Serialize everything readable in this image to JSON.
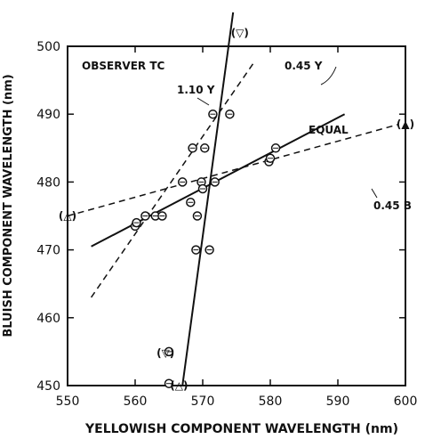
{
  "chart_data": {
    "type": "scatter",
    "xlabel": "YELLOWISH COMPONENT WAVELENGTH (nm)",
    "ylabel": "BLUISH COMPONENT WAVELENGTH (nm)",
    "xlim": [
      550,
      600
    ],
    "ylim": [
      450,
      500
    ],
    "x_ticks": [
      550,
      560,
      570,
      580,
      590,
      600
    ],
    "y_ticks": [
      450,
      460,
      470,
      480,
      490,
      500
    ],
    "annotation_observer": "OBSERVER TC",
    "grid": false,
    "series": [
      {
        "name": "EQUAL",
        "style": "solid",
        "x": [
          553.5,
          591
        ],
        "y": [
          470.5,
          490
        ]
      },
      {
        "name": "0.45 Y",
        "style": "dashed",
        "x": [
          553.5,
          577.5
        ],
        "y": [
          463,
          497.5
        ]
      },
      {
        "name": "1.10 Y",
        "style": "solid",
        "x": [
          567,
          574.5
        ],
        "y": [
          450,
          505
        ]
      },
      {
        "name": "0.45 B",
        "style": "dashed",
        "x": [
          550,
          599
        ],
        "y": [
          475,
          488.5
        ]
      }
    ],
    "points": [
      {
        "x": 560,
        "y": 473.5
      },
      {
        "x": 560.2,
        "y": 474
      },
      {
        "x": 561.5,
        "y": 475
      },
      {
        "x": 563,
        "y": 475
      },
      {
        "x": 564,
        "y": 475
      },
      {
        "x": 567,
        "y": 480
      },
      {
        "x": 568.2,
        "y": 477
      },
      {
        "x": 568.5,
        "y": 485
      },
      {
        "x": 569,
        "y": 470
      },
      {
        "x": 569.2,
        "y": 475
      },
      {
        "x": 569.8,
        "y": 480
      },
      {
        "x": 570,
        "y": 479
      },
      {
        "x": 570.3,
        "y": 485
      },
      {
        "x": 571,
        "y": 470
      },
      {
        "x": 571.5,
        "y": 490
      },
      {
        "x": 571.8,
        "y": 480
      },
      {
        "x": 574,
        "y": 490
      },
      {
        "x": 579.8,
        "y": 483
      },
      {
        "x": 580,
        "y": 483.5
      },
      {
        "x": 580.8,
        "y": 485
      },
      {
        "x": 565,
        "y": 455
      },
      {
        "x": 565,
        "y": 450.3
      }
    ],
    "offscale_points": [
      {
        "label": "(△)",
        "x": 550,
        "y": 475
      },
      {
        "label": "(▲)",
        "x": 600,
        "y": 488.5
      },
      {
        "label": "(▽)",
        "x": 564.5,
        "y": 454.8
      },
      {
        "label": "(△)",
        "x": 566.5,
        "y": 450
      },
      {
        "label": "(▽)",
        "x": 575.5,
        "y": 502
      }
    ],
    "labels": {
      "equal": "EQUAL",
      "y045": "0.45 Y",
      "y110": "1.10 Y",
      "b045": "0.45 B"
    }
  }
}
